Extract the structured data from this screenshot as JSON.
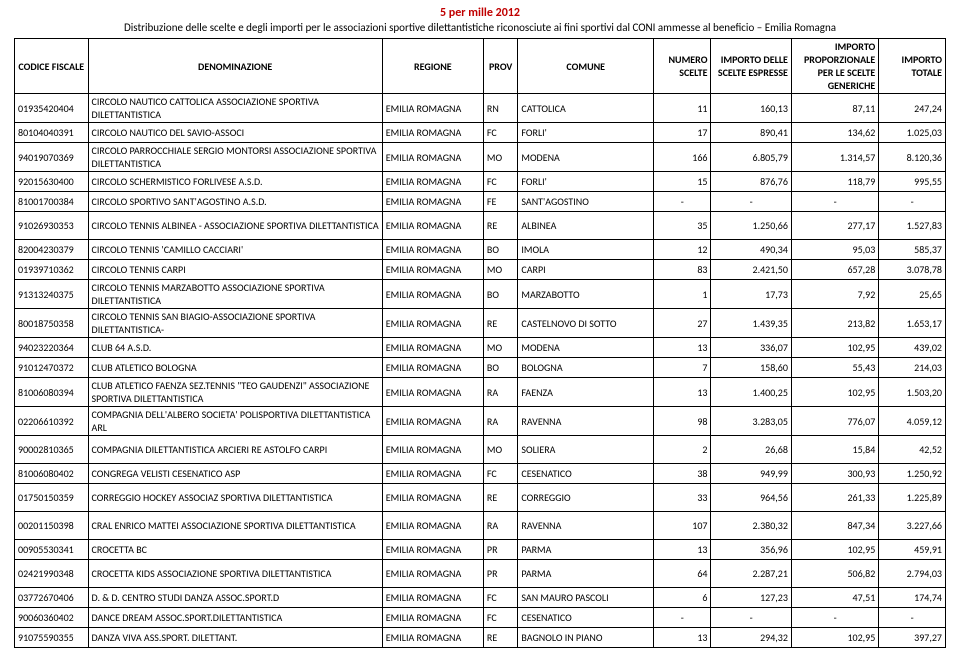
{
  "header": {
    "title": "5 per mille 2012",
    "subtitle": "Distribuzione delle scelte e degli importi per le associazioni sportive dilettantistiche riconosciute ai fini sportivi dal CONI ammesse al beneficio – Emilia Romagna"
  },
  "columns": [
    "CODICE FISCALE",
    "DENOMINAZIONE",
    "REGIONE",
    "PROV",
    "COMUNE",
    "NUMERO SCELTE",
    "IMPORTO DELLE SCELTE ESPRESSE",
    "IMPORTO PROPORZIONALE PER LE SCELTE GENERICHE",
    "IMPORTO TOTALE"
  ],
  "rows": [
    {
      "tall": true,
      "c": [
        "01935420404",
        "CIRCOLO NAUTICO CATTOLICA ASSOCIAZIONE SPORTIVA DILETTANTISTICA",
        "EMILIA ROMAGNA",
        "RN",
        "CATTOLICA",
        "11",
        "160,13",
        "87,11",
        "247,24"
      ]
    },
    {
      "c": [
        "80104040391",
        "CIRCOLO NAUTICO DEL SAVIO-ASSOCI",
        "EMILIA ROMAGNA",
        "FC",
        "FORLI'",
        "17",
        "890,41",
        "134,62",
        "1.025,03"
      ]
    },
    {
      "tall": true,
      "c": [
        "94019070369",
        "CIRCOLO PARROCCHIALE SERGIO MONTORSI ASSOCIAZIONE SPORTIVA DILETTANTISTICA",
        "EMILIA ROMAGNA",
        "MO",
        "MODENA",
        "166",
        "6.805,79",
        "1.314,57",
        "8.120,36"
      ]
    },
    {
      "c": [
        "92015630400",
        "CIRCOLO SCHERMISTICO FORLIVESE A.S.D.",
        "EMILIA ROMAGNA",
        "FC",
        "FORLI'",
        "15",
        "876,76",
        "118,79",
        "995,55"
      ]
    },
    {
      "c": [
        "81001700384",
        "CIRCOLO SPORTIVO SANT'AGOSTINO A.S.D.",
        "EMILIA ROMAGNA",
        "FE",
        "SANT'AGOSTINO",
        "-",
        "-",
        "-",
        "-"
      ]
    },
    {
      "tall": true,
      "c": [
        "91026930353",
        "CIRCOLO TENNIS ALBINEA - ASSOCIAZIONE SPORTIVA DILETTANTISTICA",
        "EMILIA ROMAGNA",
        "RE",
        "ALBINEA",
        "35",
        "1.250,66",
        "277,17",
        "1.527,83"
      ]
    },
    {
      "c": [
        "82004230379",
        "CIRCOLO TENNIS 'CAMILLO CACCIARI'",
        "EMILIA ROMAGNA",
        "BO",
        "IMOLA",
        "12",
        "490,34",
        "95,03",
        "585,37"
      ]
    },
    {
      "c": [
        "01939710362",
        "CIRCOLO TENNIS CARPI",
        "EMILIA ROMAGNA",
        "MO",
        "CARPI",
        "83",
        "2.421,50",
        "657,28",
        "3.078,78"
      ]
    },
    {
      "tall": true,
      "c": [
        "91313240375",
        "CIRCOLO TENNIS MARZABOTTO ASSOCIAZIONE SPORTIVA DILETTANTISTICA",
        "EMILIA ROMAGNA",
        "BO",
        "MARZABOTTO",
        "1",
        "17,73",
        "7,92",
        "25,65"
      ]
    },
    {
      "tall": true,
      "c": [
        "80018750358",
        "CIRCOLO TENNIS SAN BIAGIO-ASSOCIAZIONE SPORTIVA DILETTANTISTICA-",
        "EMILIA ROMAGNA",
        "RE",
        "CASTELNOVO DI SOTTO",
        "27",
        "1.439,35",
        "213,82",
        "1.653,17"
      ]
    },
    {
      "c": [
        "94023220364",
        "CLUB 64 A.S.D.",
        "EMILIA ROMAGNA",
        "MO",
        "MODENA",
        "13",
        "336,07",
        "102,95",
        "439,02"
      ]
    },
    {
      "c": [
        "91012470372",
        "CLUB ATLETICO BOLOGNA",
        "EMILIA ROMAGNA",
        "BO",
        "BOLOGNA",
        "7",
        "158,60",
        "55,43",
        "214,03"
      ]
    },
    {
      "tall": true,
      "c": [
        "81006080394",
        "CLUB ATLETICO FAENZA SEZ.TENNIS \"TEO GAUDENZI\" ASSOCIAZIONE SPORTIVA DILETTANTISTICA",
        "EMILIA ROMAGNA",
        "RA",
        "FAENZA",
        "13",
        "1.400,25",
        "102,95",
        "1.503,20"
      ]
    },
    {
      "tall": true,
      "c": [
        "02206610392",
        "COMPAGNIA DELL'ALBERO SOCIETA' POLISPORTIVA DILETTANTISTICA ARL",
        "EMILIA ROMAGNA",
        "RA",
        "RAVENNA",
        "98",
        "3.283,05",
        "776,07",
        "4.059,12"
      ]
    },
    {
      "tall": true,
      "c": [
        "90002810365",
        "COMPAGNIA DILETTANTISTICA ARCIERI RE ASTOLFO CARPI",
        "EMILIA ROMAGNA",
        "MO",
        "SOLIERA",
        "2",
        "26,68",
        "15,84",
        "42,52"
      ]
    },
    {
      "c": [
        "81006080402",
        "CONGREGA VELISTI CESENATICO ASP",
        "EMILIA ROMAGNA",
        "FC",
        "CESENATICO",
        "38",
        "949,99",
        "300,93",
        "1.250,92"
      ]
    },
    {
      "tall": true,
      "c": [
        "01750150359",
        "CORREGGIO HOCKEY ASSOCIAZ SPORTIVA DILETTANTISTICA",
        "EMILIA ROMAGNA",
        "RE",
        "CORREGGIO",
        "33",
        "964,56",
        "261,33",
        "1.225,89"
      ]
    },
    {
      "tall": true,
      "c": [
        "00201150398",
        "CRAL ENRICO MATTEI ASSOCIAZIONE SPORTIVA DILETTANTISTICA",
        "EMILIA ROMAGNA",
        "RA",
        "RAVENNA",
        "107",
        "2.380,32",
        "847,34",
        "3.227,66"
      ]
    },
    {
      "c": [
        "00905530341",
        "CROCETTA BC",
        "EMILIA ROMAGNA",
        "PR",
        "PARMA",
        "13",
        "356,96",
        "102,95",
        "459,91"
      ]
    },
    {
      "tall": true,
      "c": [
        "02421990348",
        "CROCETTA KIDS ASSOCIAZIONE SPORTIVA DILETTANTISTICA",
        "EMILIA ROMAGNA",
        "PR",
        "PARMA",
        "64",
        "2.287,21",
        "506,82",
        "2.794,03"
      ]
    },
    {
      "c": [
        "03772670406",
        "D. & D. CENTRO STUDI DANZA ASSOC.SPORT.D",
        "EMILIA ROMAGNA",
        "FC",
        "SAN MAURO PASCOLI",
        "6",
        "127,23",
        "47,51",
        "174,74"
      ]
    },
    {
      "c": [
        "90060360402",
        "DANCE DREAM ASSOC.SPORT.DILETTANTISTICA",
        "EMILIA ROMAGNA",
        "FC",
        "CESENATICO",
        "-",
        "-",
        "-",
        "-"
      ]
    },
    {
      "c": [
        "91075590355",
        "DANZA VIVA ASS.SPORT. DILETTANT.",
        "EMILIA ROMAGNA",
        "RE",
        "BAGNOLO IN PIANO",
        "13",
        "294,32",
        "102,95",
        "397,27"
      ]
    }
  ]
}
